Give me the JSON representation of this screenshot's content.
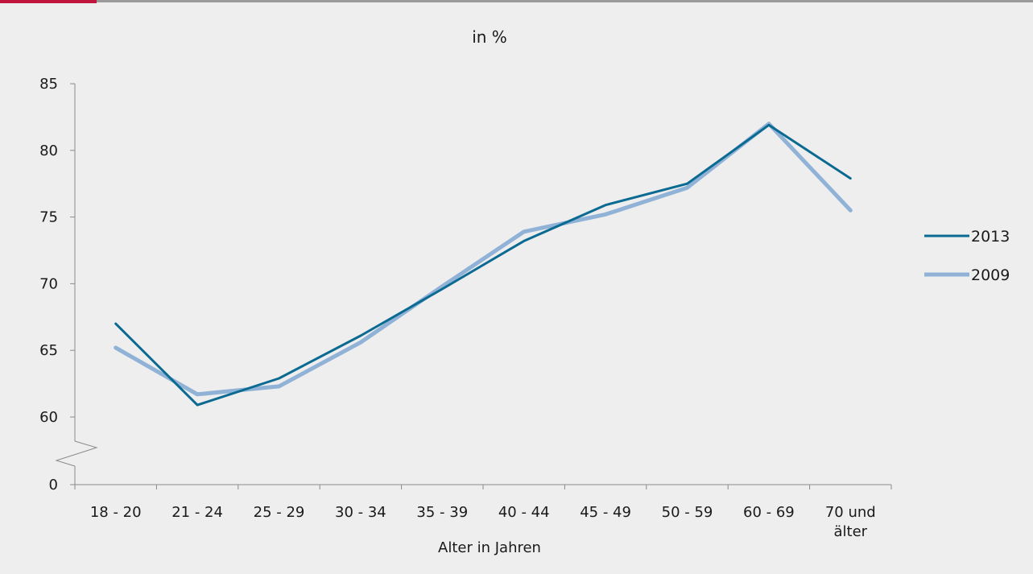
{
  "chart_data": {
    "type": "line",
    "title": "in %",
    "xlabel": "Alter in Jahren",
    "ylabel": "",
    "categories": [
      "18 - 20",
      "21 - 24",
      "25 - 29",
      "30 - 34",
      "35 - 39",
      "40 - 44",
      "45 - 49",
      "50 - 59",
      "60 - 69",
      "70 und älter"
    ],
    "y_ticks": [
      "0",
      "60",
      "65",
      "70",
      "75",
      "80",
      "85"
    ],
    "ylim": [
      60,
      85
    ],
    "axis_break": true,
    "grid": false,
    "legend_position": "right",
    "series": [
      {
        "name": "2013",
        "color": "#0a6a91",
        "values": [
          67.0,
          60.9,
          62.9,
          66.1,
          69.6,
          73.2,
          75.9,
          77.5,
          81.9,
          77.9
        ]
      },
      {
        "name": "2009",
        "color": "#8fb2d6",
        "values": [
          65.2,
          61.7,
          62.3,
          65.6,
          69.8,
          73.9,
          75.2,
          77.2,
          82.0,
          75.5
        ]
      }
    ]
  }
}
